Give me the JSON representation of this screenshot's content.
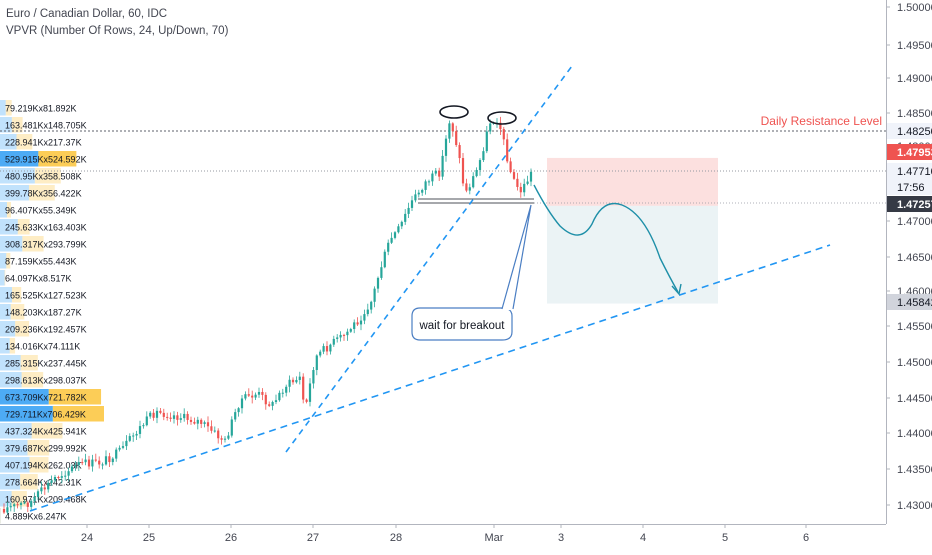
{
  "header": {
    "symbol_line": "Euro / Canadian Dollar, 60, IDC",
    "indicator_line": "VPVR (Number Of Rows, 24, Up/Down, 70)"
  },
  "chart_data": {
    "type": "candlestick",
    "x_ticks": [
      "24",
      "25",
      "26",
      "27",
      "28",
      "Mar",
      "3",
      "4",
      "5",
      "6"
    ],
    "y_ticks": [
      "1.50000",
      "1.49500",
      "1.49000",
      "1.48500",
      "1.48000",
      "1.47500",
      "1.47000",
      "1.46500",
      "1.46000",
      "1.45500",
      "1.45000",
      "1.44500",
      "1.44000",
      "1.43500",
      "1.43000"
    ],
    "ylim": [
      1.4265,
      1.5015
    ],
    "price_labels": [
      {
        "text": "1.48250",
        "value": 1.4825,
        "bg": "#f0f3fa",
        "fg": "#131722"
      },
      {
        "text": "1.47953",
        "value": 1.47953,
        "bg": "#ef5350",
        "fg": "#ffffff"
      },
      {
        "text": "1.47710",
        "value": 1.4771,
        "bg": "#f0f3fa",
        "fg": "#131722"
      },
      {
        "text": "17:56",
        "value": 1.4753,
        "bg": "#f0f3fa",
        "fg": "#131722"
      },
      {
        "text": "1.47257",
        "value": 1.47257,
        "bg": "#363a45",
        "fg": "#ffffff"
      },
      {
        "text": "1.45842",
        "value": 1.45842,
        "bg": "#d1d4dc",
        "fg": "#131722"
      }
    ],
    "volume_profile": [
      {
        "label": "79.219Kx81.892K",
        "up": 79.219,
        "down": 81.892
      },
      {
        "label": "163.481Kx148.705K",
        "up": 163.481,
        "down": 148.705
      },
      {
        "label": "228.941Kx217.37K",
        "up": 228.941,
        "down": 217.37
      },
      {
        "label": "529.915Kx524.592K",
        "up": 529.915,
        "down": 524.592
      },
      {
        "label": "480.95Kx358.508K",
        "up": 480.95,
        "down": 358.508
      },
      {
        "label": "399.78Kx356.422K",
        "up": 399.78,
        "down": 356.422
      },
      {
        "label": "96.407Kx55.349K",
        "up": 96.407,
        "down": 55.349
      },
      {
        "label": "245.633Kx163.403K",
        "up": 245.633,
        "down": 163.403
      },
      {
        "label": "308.317Kx293.799K",
        "up": 308.317,
        "down": 293.799
      },
      {
        "label": "87.159Kx55.443K",
        "up": 87.159,
        "down": 55.443
      },
      {
        "label": "64.097Kx8.517K",
        "up": 64.097,
        "down": 8.517
      },
      {
        "label": "165.525Kx127.523K",
        "up": 165.525,
        "down": 127.523
      },
      {
        "label": "148.203Kx187.27K",
        "up": 148.203,
        "down": 187.27
      },
      {
        "label": "209.236Kx192.457K",
        "up": 209.236,
        "down": 192.457
      },
      {
        "label": "134.016Kx74.111K",
        "up": 134.016,
        "down": 74.111
      },
      {
        "label": "285.315Kx237.445K",
        "up": 285.315,
        "down": 237.445
      },
      {
        "label": "298.613Kx298.037K",
        "up": 298.613,
        "down": 298.037
      },
      {
        "label": "673.709Kx721.782K",
        "up": 673.709,
        "down": 721.782
      },
      {
        "label": "729.711Kx706.429K",
        "up": 729.711,
        "down": 706.429
      },
      {
        "label": "437.324Kx425.941K",
        "up": 437.324,
        "down": 425.941
      },
      {
        "label": "379.687Kx299.992K",
        "up": 379.687,
        "down": 299.992
      },
      {
        "label": "407.194Kx262.03K",
        "up": 407.194,
        "down": 262.03
      },
      {
        "label": "278.664Kx242.31K",
        "up": 278.664,
        "down": 242.31
      },
      {
        "label": "160.971Kx209.468K",
        "up": 160.971,
        "down": 209.468
      },
      {
        "label": "4.889Kx6.247K",
        "up": 4.889,
        "down": 6.247
      }
    ],
    "annotations": {
      "resistance_label": "Daily Resistance Level",
      "resistance_value": 1.4825,
      "callout_text": "wait for breakout",
      "short_entry": 1.47257,
      "short_stop": 1.4795,
      "short_target": 1.45842
    },
    "colors": {
      "up": "#26a69a",
      "down": "#ef5350",
      "vp_up": "#2196f3",
      "vp_down": "#fbc02d",
      "trendline": "#2196f3",
      "resistance_text": "#ef5350"
    }
  }
}
